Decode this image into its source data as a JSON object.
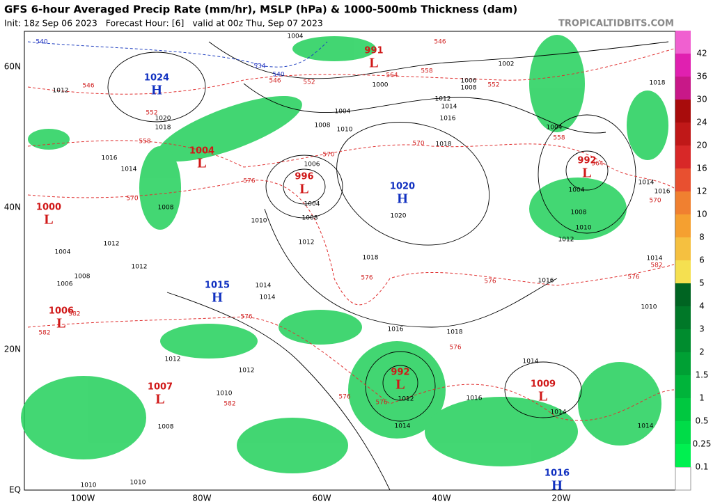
{
  "header": {
    "title": "GFS 6-hour Averaged Precip Rate (mm/hr), MSLP (hPa) & 1000-500mb Thickness (dam)",
    "subtitle": "Init: 18z Sep 06 2023   Forecast Hour: [6]   valid at 00z Thu, Sep 07 2023",
    "site": "TROPICALTIDBITS.COM"
  },
  "map": {
    "lat_labels": [
      "60N",
      "40N",
      "20N",
      "EQ"
    ],
    "lon_labels": [
      "100W",
      "80W",
      "60W",
      "40W",
      "20W"
    ],
    "centers": [
      {
        "value": "1024",
        "letter": "H"
      },
      {
        "value": "1004",
        "letter": "L"
      },
      {
        "value": "1000",
        "letter": "L"
      },
      {
        "value": "996",
        "letter": "L"
      },
      {
        "value": "991",
        "letter": "L"
      },
      {
        "value": "1020",
        "letter": "H"
      },
      {
        "value": "992",
        "letter": "L"
      },
      {
        "value": "1015",
        "letter": "H"
      },
      {
        "value": "1006",
        "letter": "L"
      },
      {
        "value": "1007",
        "letter": "L"
      },
      {
        "value": "992",
        "letter": "L"
      },
      {
        "value": "1009",
        "letter": "L"
      },
      {
        "value": "1016",
        "letter": "H"
      }
    ],
    "isobar_labels": [
      "1012",
      "1020",
      "1018",
      "1016",
      "1014",
      "1008",
      "1004",
      "1012",
      "1008",
      "1006",
      "1012",
      "1010",
      "1012",
      "1014",
      "1014",
      "1012",
      "1012",
      "1010",
      "1008",
      "1010",
      "1010",
      "1008",
      "1010",
      "1004",
      "1000",
      "1002",
      "1006",
      "1008",
      "1012",
      "1014",
      "1016",
      "1018",
      "1020",
      "1018",
      "1016",
      "1018",
      "1014",
      "1016",
      "1012",
      "1014",
      "1014",
      "1016",
      "1012",
      "1010",
      "1008",
      "1004",
      "1004",
      "1014",
      "1016",
      "1018",
      "1014",
      "1010",
      "1014",
      "1004",
      "1006",
      "1004",
      "1008"
    ],
    "thickness_labels": [
      "546",
      "552",
      "558",
      "570",
      "576",
      "570",
      "552",
      "546",
      "564",
      "558",
      "552",
      "546",
      "570",
      "576",
      "576",
      "576",
      "576",
      "576",
      "576",
      "582",
      "582",
      "582",
      "558",
      "564",
      "570",
      "576",
      "582"
    ],
    "cold_thickness_labels": [
      "540",
      "534",
      "540"
    ]
  },
  "colorbar": {
    "levels": [
      0.1,
      0.25,
      0.5,
      1,
      1.5,
      2,
      3,
      4,
      5,
      6,
      8,
      10,
      12,
      16,
      20,
      24,
      30,
      36,
      42
    ],
    "colors": [
      "#00f050",
      "#00dc48",
      "#00c840",
      "#00b43a",
      "#00a034",
      "#008c2e",
      "#007828",
      "#006422",
      "#f5e050",
      "#f5c040",
      "#f5a030",
      "#f08030",
      "#e85030",
      "#d82828",
      "#c01818",
      "#a80c0c",
      "#c81888",
      "#e020b0",
      "#f060d0"
    ]
  }
}
